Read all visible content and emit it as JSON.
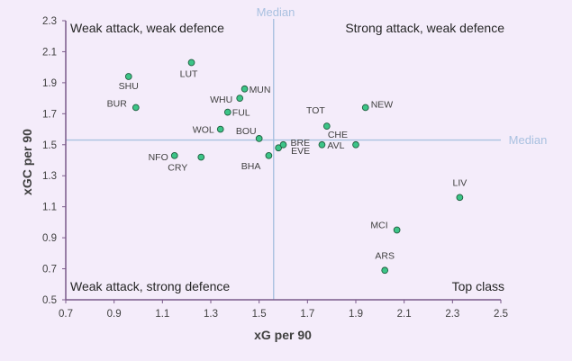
{
  "chart_data": {
    "type": "scatter",
    "xlabel": "xG per 90",
    "ylabel": "xGC per 90",
    "xlim": [
      0.7,
      2.5
    ],
    "ylim": [
      0.5,
      2.3
    ],
    "xticks": [
      "0.7",
      "0.9",
      "1.1",
      "1.3",
      "1.5",
      "1.7",
      "1.9",
      "2.1",
      "2.3",
      "2.5"
    ],
    "yticks": [
      "0.5",
      "0.7",
      "0.9",
      "1.1",
      "1.3",
      "1.5",
      "1.7",
      "1.9",
      "2.1",
      "2.3"
    ],
    "grid": false,
    "median_x": 1.56,
    "median_y": 1.53,
    "median_label_vertical": "Median",
    "median_label_horizontal": "Median",
    "quadrant_labels": {
      "top_left": "Weak attack, weak defence",
      "top_right": "Strong attack, weak defence",
      "bottom_left": "Weak attack, strong defence",
      "bottom_right": "Top class"
    },
    "point_color": "#3cc487",
    "median_color": "#a9c1e0",
    "points": [
      {
        "label": "SHU",
        "x": 0.96,
        "y": 1.94
      },
      {
        "label": "BUR",
        "x": 0.99,
        "y": 1.74
      },
      {
        "label": "LUT",
        "x": 1.22,
        "y": 2.03
      },
      {
        "label": "WHU",
        "x": 1.42,
        "y": 1.8
      },
      {
        "label": "MUN",
        "x": 1.44,
        "y": 1.86
      },
      {
        "label": "FUL",
        "x": 1.37,
        "y": 1.71
      },
      {
        "label": "WOL",
        "x": 1.34,
        "y": 1.6
      },
      {
        "label": "BOU",
        "x": 1.5,
        "y": 1.54
      },
      {
        "label": "NFO",
        "x": 1.15,
        "y": 1.43
      },
      {
        "label": "CRY",
        "x": 1.26,
        "y": 1.42
      },
      {
        "label": "BHA",
        "x": 1.54,
        "y": 1.43
      },
      {
        "label": "EVE",
        "x": 1.58,
        "y": 1.48
      },
      {
        "label": "BRE",
        "x": 1.6,
        "y": 1.5
      },
      {
        "label": "AVL",
        "x": 1.76,
        "y": 1.5
      },
      {
        "label": "TOT",
        "x": 1.78,
        "y": 1.62
      },
      {
        "label": "CHE",
        "x": 1.9,
        "y": 1.5
      },
      {
        "label": "NEW",
        "x": 1.94,
        "y": 1.74
      },
      {
        "label": "LIV",
        "x": 2.33,
        "y": 1.16
      },
      {
        "label": "MCI",
        "x": 2.07,
        "y": 0.95
      },
      {
        "label": "ARS",
        "x": 2.02,
        "y": 0.69
      }
    ]
  }
}
